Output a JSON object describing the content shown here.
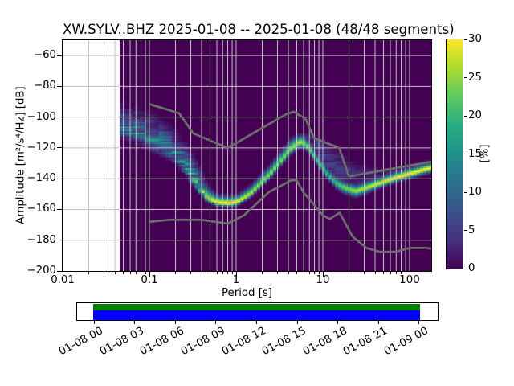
{
  "title": "XW.SYLV..BHZ   2025-01-08 -- 2025-01-08  (48/48 segments)",
  "axes": {
    "xlabel": "Period [s]",
    "ylabel": "Amplitude [m²/s⁴/Hz] [dB]",
    "x_scale": "log",
    "x_range": [
      0.01,
      177.8
    ],
    "x_tick_values": [
      0.01,
      0.1,
      1,
      10,
      100
    ],
    "x_tick_labels": [
      "0.01",
      "0.1",
      "1",
      "10",
      "100"
    ],
    "y_range": [
      -200,
      -50
    ],
    "y_tick_values": [
      -60,
      -80,
      -100,
      -120,
      -140,
      -160,
      -180,
      -200
    ],
    "grid": true
  },
  "colorbar": {
    "label": "[%]",
    "range": [
      0,
      30
    ],
    "tick_values": [
      0,
      5,
      10,
      15,
      20,
      25,
      30
    ],
    "colormap": "viridis",
    "stops": [
      [
        0,
        "#440154"
      ],
      [
        0.125,
        "#46327e"
      ],
      [
        0.25,
        "#3a528b"
      ],
      [
        0.375,
        "#2c718e"
      ],
      [
        0.5,
        "#20908c"
      ],
      [
        0.625,
        "#27ad81"
      ],
      [
        0.75,
        "#5ec961"
      ],
      [
        0.875,
        "#aadc32"
      ],
      [
        1,
        "#fde725"
      ]
    ]
  },
  "chart_data": {
    "type": "heatmap",
    "title": "XW.SYLV..BHZ   2025-01-08 -- 2025-01-08  (48/48 segments)",
    "xlabel": "Period [s]",
    "ylabel": "Amplitude [m²/s⁴/Hz] [dB]",
    "xlim": [
      0.01,
      177.8
    ],
    "ylim": [
      -200,
      -50
    ],
    "value_unit": "%",
    "value_range": [
      0,
      30
    ],
    "background_value_color": "#440154",
    "data_period_range": [
      0.0454,
      177.8
    ],
    "db_bin_width": 1,
    "period_step_octaves": 0.125,
    "profile_columns": [
      "period_s",
      "mode_db",
      "sigma_below_db",
      "sigma_above_db",
      "peak_percent",
      "tail_percent",
      "tail_offset_db",
      "tail_sigma_db"
    ],
    "profile": [
      [
        0.045,
        -106.5,
        3.5,
        7.0,
        13,
        0,
        0,
        1
      ],
      [
        0.065,
        -109.5,
        3.5,
        7.0,
        13,
        0,
        0,
        1
      ],
      [
        0.095,
        -113.5,
        3.5,
        7.5,
        13,
        0,
        0,
        1
      ],
      [
        0.14,
        -118.5,
        3.5,
        7.5,
        13,
        0,
        0,
        1
      ],
      [
        0.2,
        -124.5,
        3.0,
        7.0,
        14,
        0,
        0,
        1
      ],
      [
        0.28,
        -135.0,
        2.5,
        8.0,
        16,
        0,
        0,
        1
      ],
      [
        0.36,
        -145.0,
        2.0,
        7.0,
        19,
        0,
        0,
        1
      ],
      [
        0.46,
        -152.5,
        1.3,
        4.0,
        25,
        0,
        0,
        1
      ],
      [
        0.6,
        -155.5,
        1.2,
        2.5,
        30,
        0,
        0,
        1
      ],
      [
        0.85,
        -156.0,
        1.2,
        2.2,
        30,
        0,
        0,
        1
      ],
      [
        1.05,
        -155.0,
        1.2,
        2.2,
        30,
        0,
        0,
        1
      ],
      [
        1.45,
        -150.0,
        1.2,
        2.5,
        27,
        0,
        0,
        1
      ],
      [
        1.95,
        -143.0,
        1.3,
        2.8,
        25,
        0,
        0,
        1
      ],
      [
        2.6,
        -135.5,
        1.5,
        3.0,
        24,
        0,
        0,
        1
      ],
      [
        3.4,
        -127.5,
        1.6,
        3.2,
        24,
        0,
        0,
        1
      ],
      [
        4.3,
        -120.5,
        1.8,
        3.0,
        25,
        0,
        0,
        1
      ],
      [
        5.4,
        -116.0,
        1.8,
        2.6,
        26,
        0,
        0,
        1
      ],
      [
        6.4,
        -118.0,
        1.5,
        2.4,
        24,
        2,
        5,
        3
      ],
      [
        7.6,
        -123.5,
        1.5,
        2.0,
        22,
        4,
        7,
        4
      ],
      [
        9.0,
        -130.0,
        1.5,
        2.0,
        20,
        5,
        9,
        5
      ],
      [
        11.0,
        -136.5,
        1.5,
        2.0,
        19,
        5,
        10,
        5.5
      ],
      [
        14.0,
        -142.5,
        1.8,
        2.0,
        20,
        5,
        11,
        6
      ],
      [
        18.0,
        -146.0,
        2.0,
        2.0,
        23,
        4,
        11,
        6
      ],
      [
        24.0,
        -148.0,
        2.0,
        2.0,
        26,
        3,
        10,
        5
      ],
      [
        31.0,
        -146.0,
        1.8,
        2.0,
        27,
        3,
        8,
        4
      ],
      [
        42.0,
        -143.5,
        1.6,
        2.0,
        28,
        2,
        6,
        3
      ],
      [
        57.0,
        -141.0,
        1.5,
        2.0,
        29,
        1.5,
        5,
        3
      ],
      [
        78.0,
        -138.5,
        1.5,
        2.0,
        30,
        1,
        4,
        2.5
      ],
      [
        105.0,
        -136.5,
        1.5,
        2.0,
        30,
        0.8,
        4,
        2.5
      ],
      [
        140.0,
        -134.5,
        1.5,
        2.0,
        30,
        0.6,
        4,
        2.5
      ],
      [
        178.0,
        -133.0,
        1.5,
        2.0,
        30,
        0.5,
        4,
        2.5
      ]
    ],
    "noise_models": {
      "color": "#6e6e6e",
      "nhnm": [
        [
          0.1,
          -91.5
        ],
        [
          0.22,
          -97.4
        ],
        [
          0.32,
          -110.5
        ],
        [
          0.8,
          -120.0
        ],
        [
          3.8,
          -98.0
        ],
        [
          4.6,
          -96.5
        ],
        [
          6.3,
          -101.0
        ],
        [
          7.9,
          -113.5
        ],
        [
          15.4,
          -120.0
        ],
        [
          20.0,
          -138.5
        ],
        [
          354.8,
          -126.0
        ]
      ],
      "nlnm": [
        [
          0.1,
          -168.0
        ],
        [
          0.17,
          -166.7
        ],
        [
          0.4,
          -166.7
        ],
        [
          0.8,
          -169.2
        ],
        [
          1.24,
          -163.7
        ],
        [
          2.4,
          -148.6
        ],
        [
          4.3,
          -141.1
        ],
        [
          5.0,
          -141.1
        ],
        [
          6.0,
          -149.0
        ],
        [
          10.0,
          -163.8
        ],
        [
          12.0,
          -166.2
        ],
        [
          15.6,
          -162.1
        ],
        [
          21.9,
          -177.5
        ],
        [
          31.6,
          -185.0
        ],
        [
          45.0,
          -187.5
        ],
        [
          70.0,
          -187.5
        ],
        [
          101.0,
          -185.0
        ],
        [
          154.0,
          -185.0
        ],
        [
          328.0,
          -187.5
        ]
      ]
    }
  },
  "timeline": {
    "tick_labels": [
      "01-08 00",
      "01-08 03",
      "01-08 06",
      "01-08 09",
      "01-08 12",
      "01-08 15",
      "01-08 18",
      "01-08 21",
      "01-09 00"
    ],
    "top_bar_color": "#008000",
    "bottom_bar_color": "#0000ff"
  },
  "colors": {
    "grid": "#c0c0c0",
    "spine": "#000000",
    "text": "#000000",
    "figure_background": "#ffffff"
  }
}
